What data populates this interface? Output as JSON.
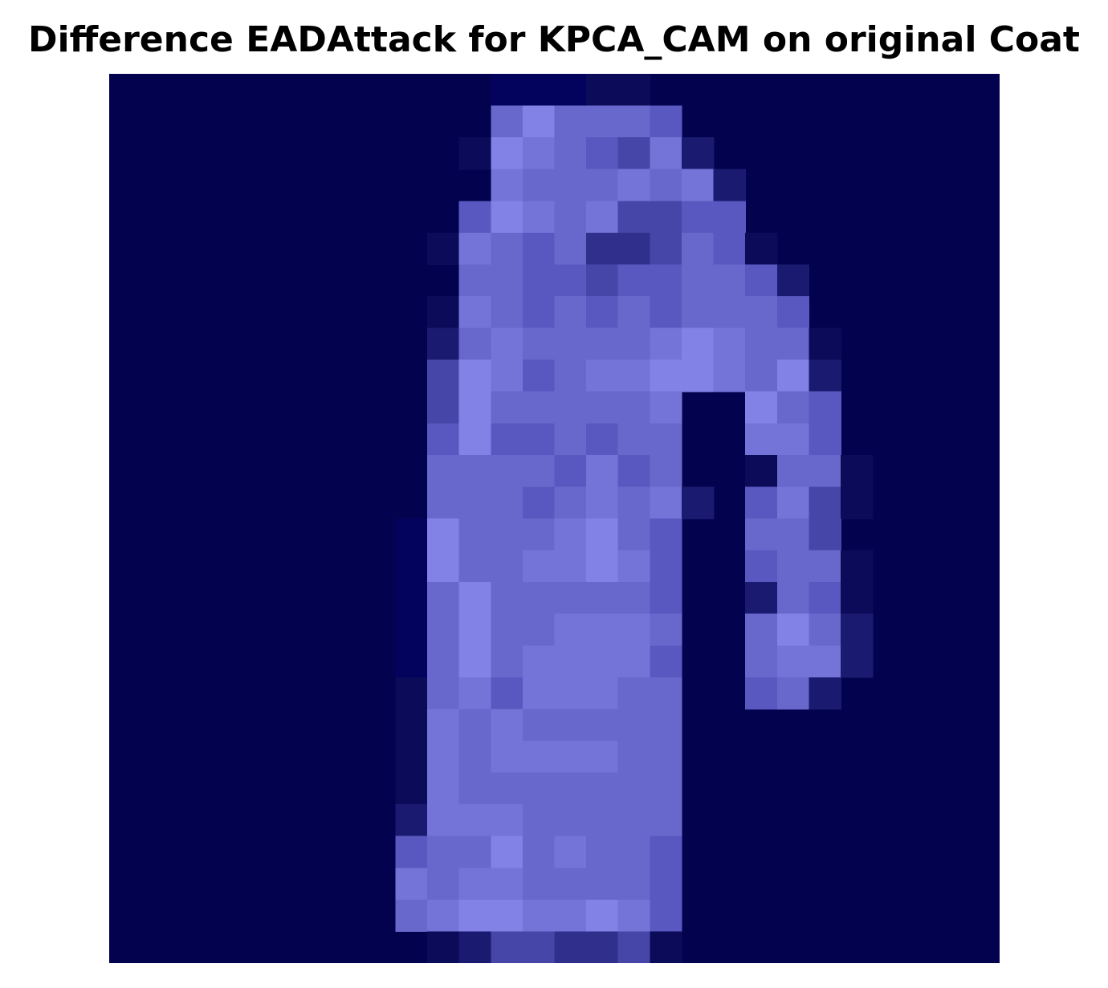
{
  "figure": {
    "title": "Difference EADAttack for KPCA_CAM on original Coat"
  },
  "image": {
    "description_icon": "pixel-heatmap-image",
    "colormap": "dark-navy-to-light-violet",
    "grid_size": 28,
    "background_color": "#02024E",
    "silhouette": "coat",
    "shade_levels": [
      "#02024E",
      "#03035E",
      "#0B0B5A",
      "#1A1A70",
      "#30308C",
      "#4646A8",
      "#5858C0",
      "#6868CC",
      "#7474D8",
      "#8282E6",
      "#9494F4",
      "#A4A4FF"
    ],
    "pixels": [
      "0000000000001112200000000000",
      "0000000000007977760000000000",
      "0000000000029876583000000000",
      "0000000000008777878300000000",
      "0000000000069878556600000000",
      "0000000000287674457620000000",
      "0000000000077665667763000000",
      "0000000000287676767776000000",
      "0000000000378777789877200000",
      "0000000000598678899879300000",
      "0000000000597777780097600000",
      "0000000000696676770088600000",
      "0000000000777768670027720000",
      "0000000000777678783068520000",
      "0000000001977789760077500000",
      "0000000001977889860067720000",
      "0000000001797777760037620000",
      "0000000001797788870079730000",
      "0000000001797888860078830000",
      "0000000002786888770067300000",
      "0000000002878777770000000000",
      "0000000002878888770000000000",
      "0000000002877777770000000000",
      "0000000003888777770000000000",
      "0000000006779787760000000000",
      "0000000008788777760000000000",
      "0000000007899889860000000000",
      "0000000000235544520000000000"
    ]
  }
}
